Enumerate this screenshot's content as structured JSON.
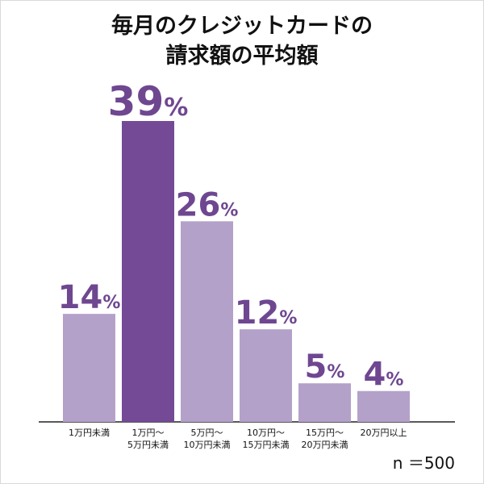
{
  "chart_data": {
    "type": "bar",
    "title_lines": [
      "毎月のクレジットカードの",
      "請求額の平均額"
    ],
    "categories": [
      [
        "1万円未満"
      ],
      [
        "1万円〜",
        "5万円未満"
      ],
      [
        "5万円〜",
        "10万円未満"
      ],
      [
        "10万円〜",
        "15万円未満"
      ],
      [
        "15万円〜",
        "20万円未満"
      ],
      [
        "20万円以上"
      ]
    ],
    "values": [
      14,
      39,
      26,
      12,
      5,
      4
    ],
    "value_suffix": "%",
    "highlight_index": 1,
    "ylim": [
      0,
      39
    ],
    "grid": false,
    "colors": {
      "bar": "#b4a1ca",
      "highlight": "#744a96",
      "label": "#6f4791",
      "axis": "#222222"
    },
    "sample_size": "n ＝500"
  }
}
